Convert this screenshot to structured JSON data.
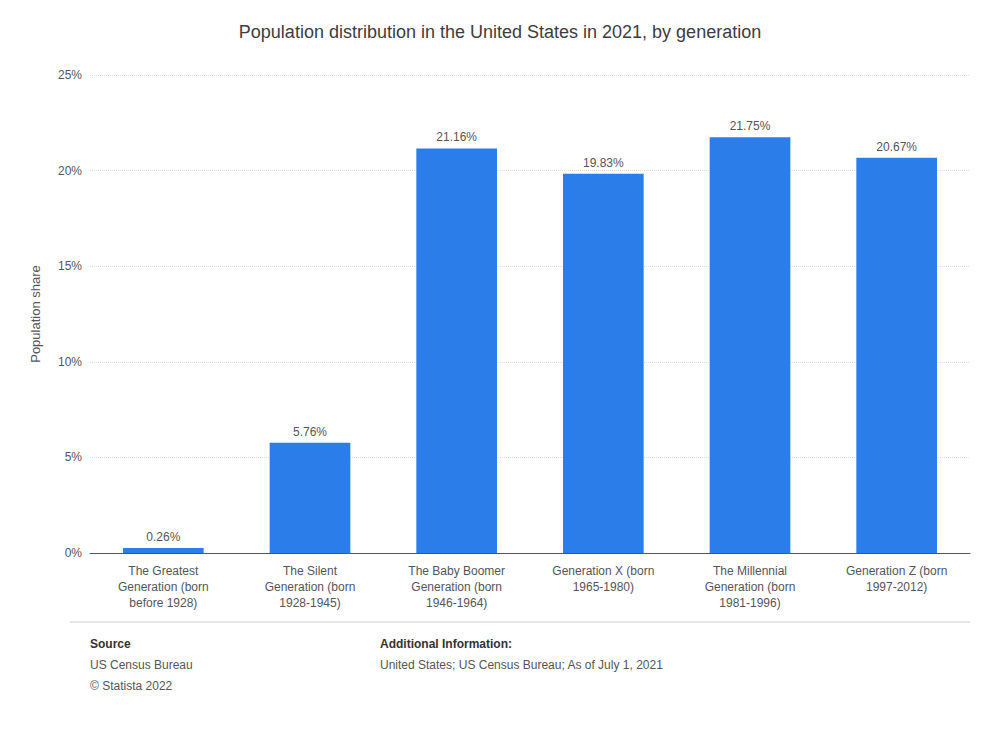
{
  "chart_data": {
    "type": "bar",
    "title": "Population distribution in the United States in 2021, by generation",
    "ylabel": "Population share",
    "categories": [
      "The Greatest\nGeneration (born\nbefore 1928)",
      "The Silent\nGeneration (born\n1928-1945)",
      "The Baby Boomer\nGeneration (born\n1946-1964)",
      "Generation X (born\n1965-1980)",
      "The Millennial\nGeneration (born\n1981-1996)",
      "Generation Z (born\n1997-2012)"
    ],
    "values": [
      0.26,
      5.76,
      21.16,
      19.83,
      21.75,
      20.67
    ],
    "value_labels": [
      "0.26%",
      "5.76%",
      "21.16%",
      "19.83%",
      "21.75%",
      "20.67%"
    ],
    "color": "#2b7de9",
    "ylim": [
      0,
      25
    ],
    "yticks": [
      {
        "value": 0,
        "label": "0%"
      },
      {
        "value": 5,
        "label": "5%"
      },
      {
        "value": 10,
        "label": "10%"
      },
      {
        "value": 15,
        "label": "15%"
      },
      {
        "value": 20,
        "label": "20%"
      },
      {
        "value": 25,
        "label": "25%"
      }
    ],
    "grid": true,
    "annotations": [
      [
        "Source",
        "US Census Bureau",
        "© Statista 2022"
      ],
      [
        "Additional Information:",
        "United States; US Census Bureau; As of July 1, 2021"
      ]
    ]
  }
}
